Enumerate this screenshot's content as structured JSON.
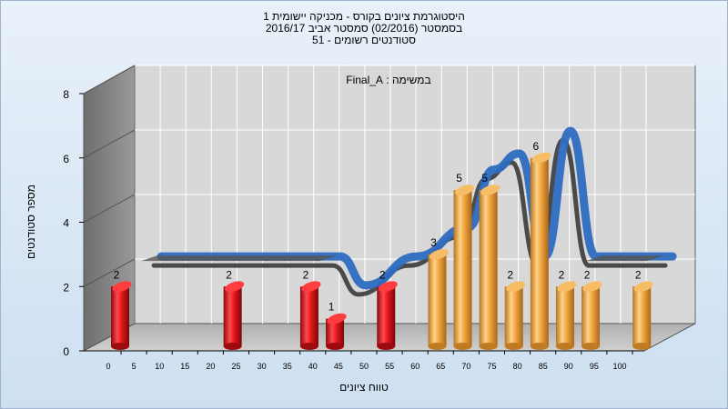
{
  "chart_data": {
    "type": "bar",
    "title_lines": [
      "היסטוגרמת ציונים בקורס - מכניקה יישומית 1",
      "בסמסטר  (02/2016)  סמסטר אביב 2016/17",
      "סטודנטים רשומים - 51"
    ],
    "annotation": "במשימה : Final_A",
    "xlabel": "טווח ציונים",
    "ylabel": "מספר סטודנטים",
    "x_ticks": [
      "0",
      "5",
      "10",
      "15",
      "20",
      "25",
      "30",
      "35",
      "40",
      "45",
      "50",
      "55",
      "60",
      "65",
      "70",
      "75",
      "80",
      "85",
      "90",
      "95",
      "100"
    ],
    "y_ticks": [
      "0",
      "2",
      "4",
      "6",
      "8"
    ],
    "ylim": [
      0,
      8
    ],
    "xlim": [
      0,
      100
    ],
    "bars": [
      {
        "x": 0,
        "value": 2,
        "label": "2",
        "color": "red"
      },
      {
        "x": 22,
        "value": 2,
        "label": "2",
        "color": "red"
      },
      {
        "x": 37,
        "value": 2,
        "label": "2",
        "color": "red"
      },
      {
        "x": 42,
        "value": 1,
        "label": "1",
        "color": "red"
      },
      {
        "x": 52,
        "value": 2,
        "label": "2",
        "color": "red"
      },
      {
        "x": 62,
        "value": 3,
        "label": "3",
        "color": "orange"
      },
      {
        "x": 67,
        "value": 5,
        "label": "5",
        "color": "orange"
      },
      {
        "x": 72,
        "value": 5,
        "label": "5",
        "color": "orange"
      },
      {
        "x": 77,
        "value": 2,
        "label": "2",
        "color": "orange"
      },
      {
        "x": 82,
        "value": 6,
        "label": "6",
        "color": "orange"
      },
      {
        "x": 87,
        "value": 2,
        "label": "2",
        "color": "orange"
      },
      {
        "x": 92,
        "value": 2,
        "label": "2",
        "color": "orange"
      },
      {
        "x": 102,
        "value": 2,
        "label": "2",
        "color": "orange"
      }
    ],
    "trend_line": {
      "x": [
        5,
        40,
        45,
        55,
        65,
        70,
        75,
        80,
        85,
        90,
        95,
        105
      ],
      "y": [
        2.4,
        2.4,
        1.5,
        2.4,
        3.3,
        5.1,
        5.6,
        2.4,
        6.3,
        2.4,
        2.4,
        2.4
      ]
    },
    "colors": {
      "red": "#e0171b",
      "orange": "#f0a43c",
      "trend": "#2e6bc0",
      "wall": "#7f7f7f",
      "plot_back": "#d8d8d8",
      "grid": "#ffffff"
    },
    "grid": true,
    "style": "3d"
  }
}
